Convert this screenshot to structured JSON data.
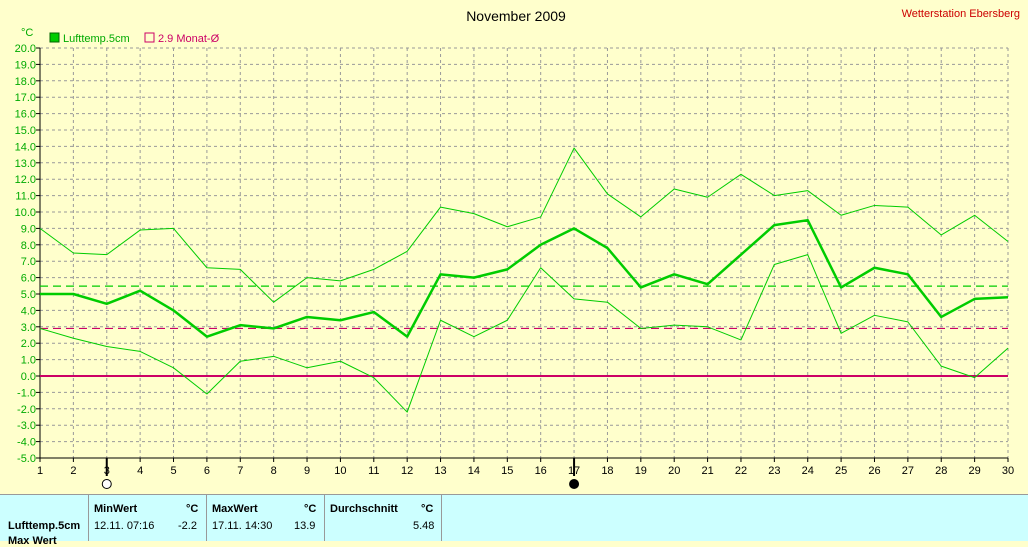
{
  "station": "Wetterstation Ebersberg",
  "chart_data": {
    "type": "line",
    "title": "November 2009",
    "ylabel": "°C",
    "ylim": [
      -5.0,
      20.0
    ],
    "ytick_step": 1.0,
    "x": [
      1,
      2,
      3,
      4,
      5,
      6,
      7,
      8,
      9,
      10,
      11,
      12,
      13,
      14,
      15,
      16,
      17,
      18,
      19,
      20,
      21,
      22,
      23,
      24,
      25,
      26,
      27,
      28,
      29,
      30
    ],
    "grid": true,
    "legend": {
      "placement": "top-left"
    },
    "legend_entries": [
      {
        "label": "Lufttemp.5cm",
        "color": "#00cc00",
        "marker": "filled-square"
      },
      {
        "label": "2.9 Monat-Ø",
        "color": "#cc0066",
        "marker": "open-square"
      }
    ],
    "series": [
      {
        "name": "Lufttemp.5cm",
        "role": "mean",
        "color": "#00cc00",
        "values": [
          5.0,
          5.0,
          4.4,
          5.2,
          4.0,
          2.4,
          3.1,
          2.9,
          3.6,
          3.4,
          3.9,
          2.4,
          6.2,
          6.0,
          6.5,
          8.0,
          9.0,
          7.8,
          5.4,
          6.2,
          5.6,
          7.4,
          9.2,
          9.5,
          5.4,
          6.6,
          6.2,
          3.6,
          4.7,
          4.8
        ]
      },
      {
        "role": "max",
        "color": "#00cc00",
        "values": [
          9.0,
          7.5,
          7.4,
          8.9,
          9.0,
          6.6,
          6.5,
          4.5,
          6.0,
          5.8,
          6.5,
          7.6,
          10.3,
          9.9,
          9.1,
          9.7,
          13.9,
          11.1,
          9.7,
          11.4,
          10.9,
          12.3,
          11.0,
          11.3,
          9.8,
          10.4,
          10.3,
          8.6,
          9.8,
          8.2
        ]
      },
      {
        "role": "min",
        "color": "#00cc00",
        "values": [
          2.9,
          2.3,
          1.8,
          1.5,
          0.5,
          -1.1,
          0.9,
          1.2,
          0.5,
          0.9,
          -0.1,
          -2.2,
          3.4,
          2.4,
          3.4,
          6.6,
          4.7,
          4.5,
          2.9,
          3.1,
          3.0,
          2.2,
          6.8,
          7.4,
          2.6,
          3.7,
          3.3,
          0.6,
          -0.1,
          1.7
        ]
      }
    ],
    "reference_lines": [
      {
        "value": 5.48,
        "color": "#00cc00",
        "style": "dashed"
      },
      {
        "value": 2.9,
        "color": "#cc0066",
        "style": "dashed"
      },
      {
        "value": 0.0,
        "color": "#cc0066",
        "style": "solid"
      }
    ],
    "moon_phases": [
      {
        "day": 3,
        "phase": "full-moon"
      },
      {
        "day": 17,
        "phase": "new-moon"
      }
    ]
  },
  "stats_table": {
    "row_label": "Lufttemp.5cm",
    "row_label_cutoff": "Max Wert",
    "min": {
      "header": "MinWert",
      "unit": "°C",
      "datetime": "12.11.  07:16",
      "value": "-2.2"
    },
    "max": {
      "header": "MaxWert",
      "unit": "°C",
      "datetime": "17.11.  14:30",
      "value": "13.9"
    },
    "avg": {
      "header": "Durchschnitt",
      "unit": "°C",
      "value": "5.48"
    }
  }
}
